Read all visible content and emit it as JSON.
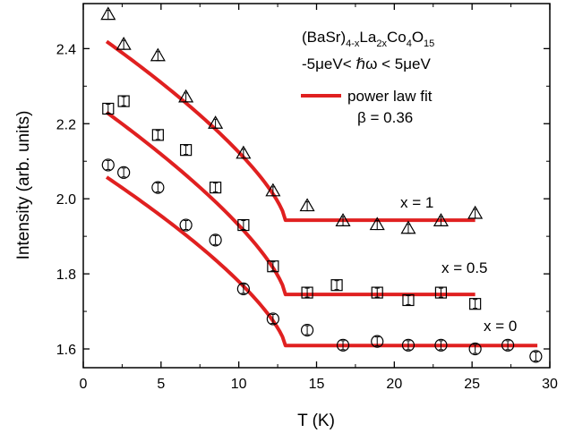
{
  "chart_data": {
    "type": "scatter",
    "title": "",
    "xlabel": "T (K)",
    "ylabel": "Intensity (arb. units)",
    "xlim": [
      0,
      30
    ],
    "ylim": [
      1.55,
      2.52
    ],
    "x_ticks": [
      0,
      5,
      10,
      15,
      20,
      25,
      30
    ],
    "y_ticks": [
      1.6,
      1.8,
      2.0,
      2.2,
      2.4
    ],
    "x_tick_labels": [
      "0",
      "5",
      "10",
      "15",
      "20",
      "25",
      "30"
    ],
    "y_tick_labels": [
      "1.6",
      "1.8",
      "2.0",
      "2.2",
      "2.4"
    ],
    "grid": false,
    "fit_color": "#e02020",
    "fit": {
      "beta": 0.36,
      "tc": 13.0,
      "x_start": 1.5,
      "curves": [
        {
          "x_end": 25.2,
          "baseline": 1.943,
          "amplitude": 0.52
        },
        {
          "x_end": 25.2,
          "baseline": 1.745,
          "amplitude": 0.53
        },
        {
          "x_end": 29.2,
          "baseline": 1.609,
          "amplitude": 0.49
        }
      ]
    },
    "series": [
      {
        "name": "x = 1",
        "marker": "triangle",
        "x": [
          1.6,
          2.6,
          4.8,
          6.6,
          8.5,
          10.3,
          12.2,
          14.4,
          16.7,
          18.9,
          20.9,
          23.0,
          25.2
        ],
        "y": [
          2.49,
          2.41,
          2.38,
          2.27,
          2.2,
          2.12,
          2.02,
          1.98,
          1.94,
          1.93,
          1.92,
          1.94,
          1.96
        ]
      },
      {
        "name": "x = 0.5",
        "marker": "square",
        "x": [
          1.6,
          2.6,
          4.8,
          6.6,
          8.5,
          10.3,
          12.2,
          14.4,
          16.3,
          18.9,
          20.9,
          23.0,
          25.2
        ],
        "y": [
          2.24,
          2.26,
          2.17,
          2.13,
          2.03,
          1.93,
          1.82,
          1.75,
          1.77,
          1.75,
          1.73,
          1.75,
          1.72
        ]
      },
      {
        "name": "x = 0",
        "marker": "circle",
        "x": [
          1.6,
          2.6,
          4.8,
          6.6,
          8.5,
          10.3,
          12.2,
          14.4,
          16.7,
          18.9,
          20.9,
          23.0,
          25.2,
          27.3,
          29.1
        ],
        "y": [
          2.09,
          2.07,
          2.03,
          1.93,
          1.89,
          1.76,
          1.68,
          1.65,
          1.61,
          1.62,
          1.61,
          1.61,
          1.6,
          1.61,
          1.58
        ]
      }
    ],
    "annotations": {
      "compound_main": "(BaSr)",
      "compound_sub1": "4-x",
      "compound_la": "La",
      "compound_sub2": "2x",
      "compound_co": "Co",
      "compound_sub3": "4",
      "compound_o": "O",
      "compound_sub4": "15",
      "energy_window": "-5μeV< ℏω < 5μeV",
      "legend_fit": "power law fit",
      "beta_label": "β = 0.36",
      "label_x1": "x = 1",
      "label_x05": "x = 0.5",
      "label_x0": "x = 0"
    }
  }
}
